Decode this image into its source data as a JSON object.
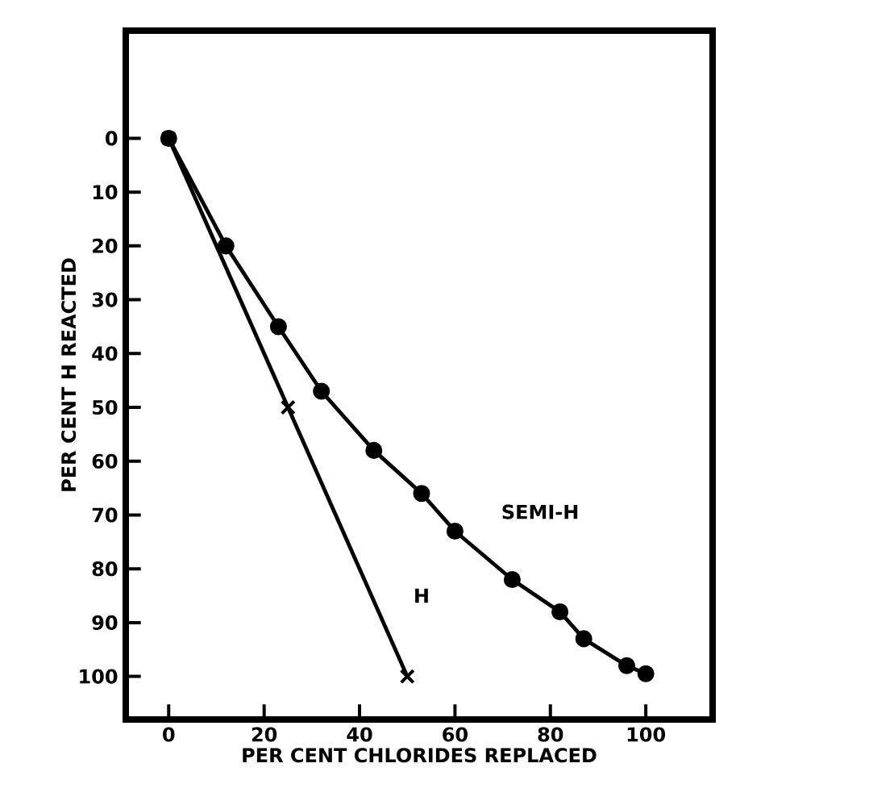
{
  "chart_data": {
    "type": "line",
    "xlabel": "PER CENT CHLORIDES REPLACED",
    "ylabel": "PER CENT H REACTED",
    "xlim": [
      -9,
      114
    ],
    "ylim": [
      108,
      -20
    ],
    "xticks": [
      0,
      20,
      40,
      60,
      80,
      100
    ],
    "yticks": [
      0,
      10,
      20,
      30,
      40,
      50,
      60,
      70,
      80,
      90,
      100
    ],
    "series": [
      {
        "name": "SEMI-H",
        "color": "#000000",
        "marker": "circle",
        "x": [
          0,
          12,
          23,
          32,
          43,
          53,
          60,
          72,
          82,
          87,
          96,
          100
        ],
        "values": [
          0,
          20,
          35,
          47,
          58,
          66,
          73,
          82,
          88,
          93,
          98,
          99.5
        ]
      },
      {
        "name": "H",
        "color": "#000000",
        "marker": "cross",
        "x": [
          0,
          25,
          50
        ],
        "values": [
          0,
          50,
          100
        ]
      }
    ]
  }
}
